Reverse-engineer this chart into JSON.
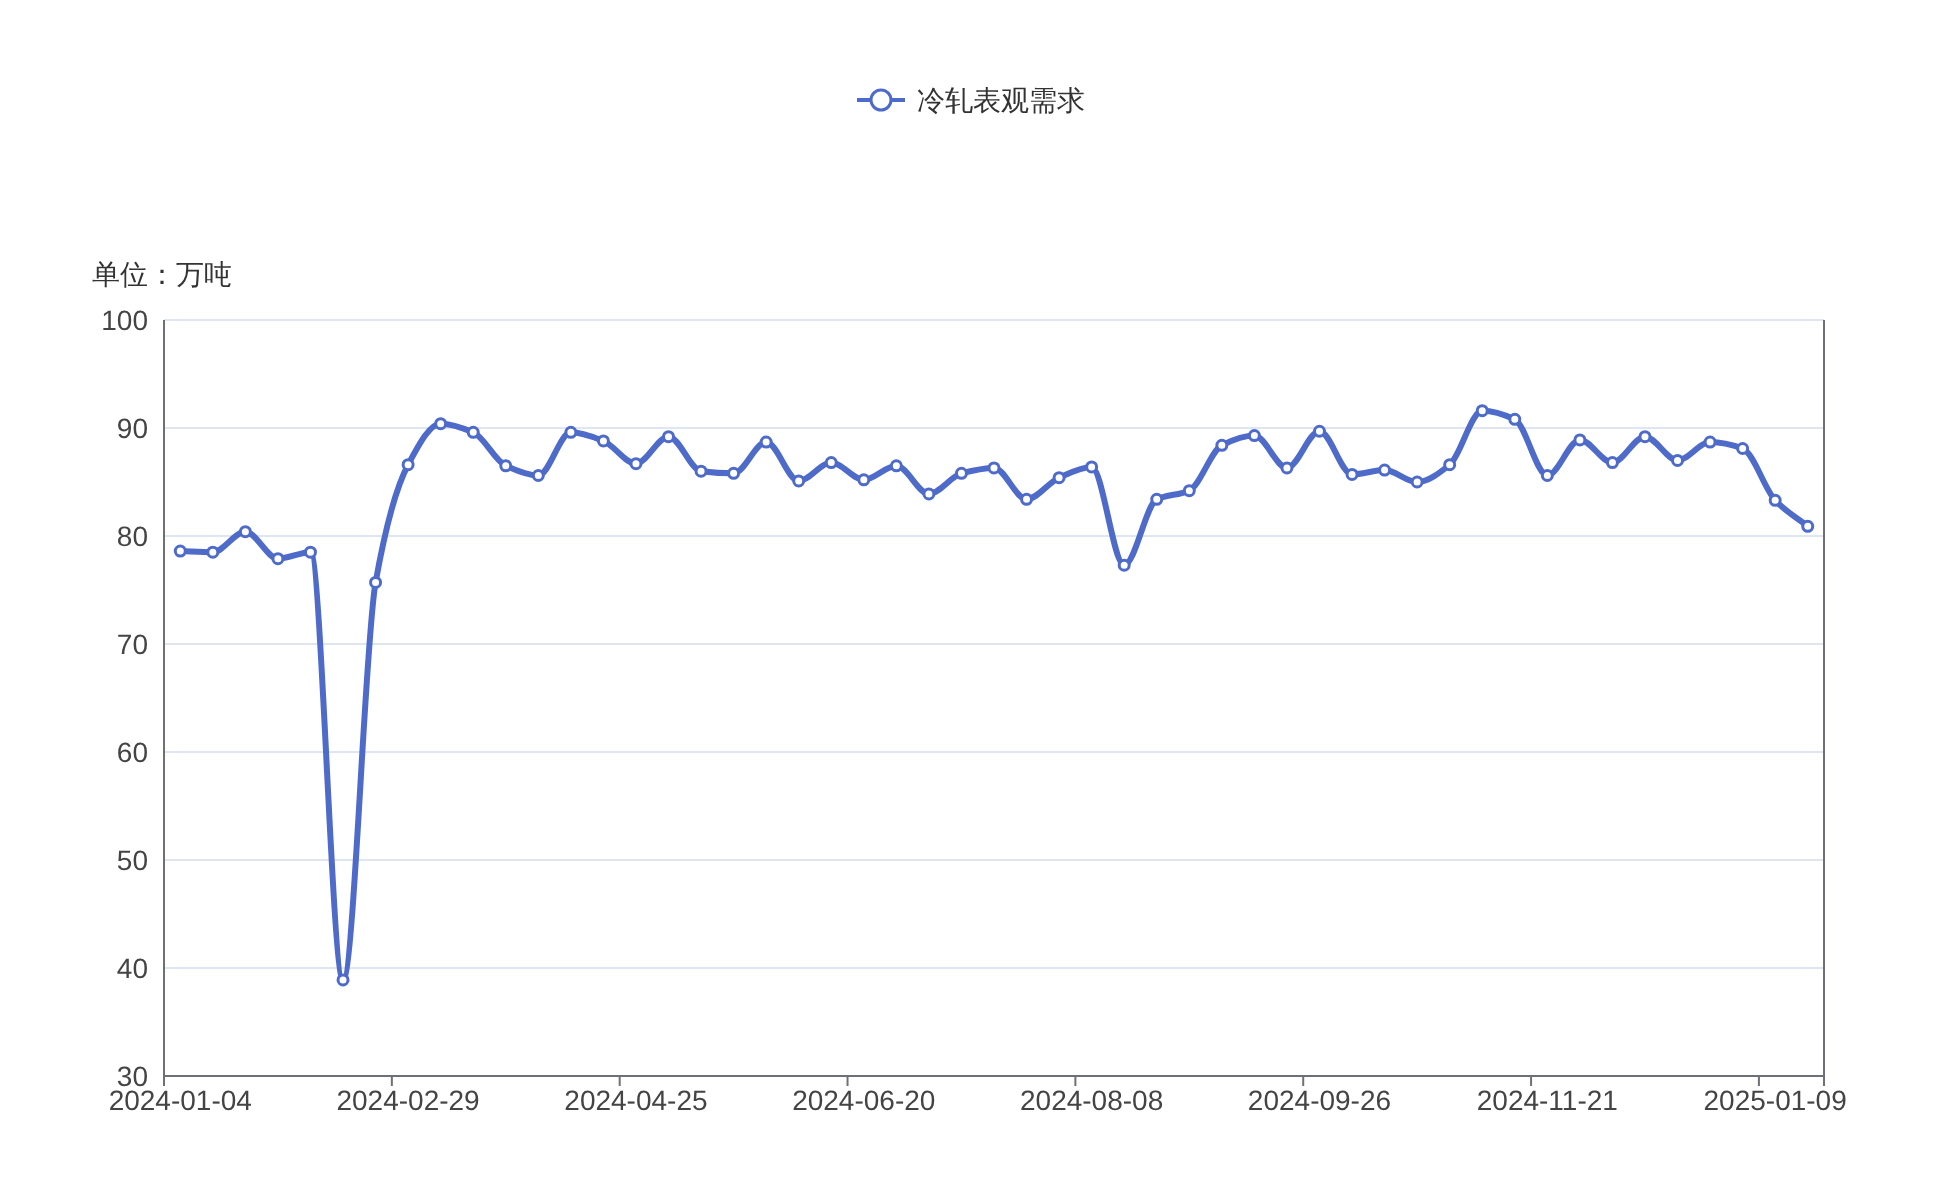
{
  "chart_data": {
    "type": "line",
    "ylabel": "单位：万吨",
    "categories": [
      "2024-01-04",
      null,
      null,
      null,
      null,
      null,
      null,
      "2024-02-29",
      null,
      null,
      null,
      null,
      null,
      null,
      "2024-04-25",
      null,
      null,
      null,
      null,
      null,
      null,
      "2024-06-20",
      null,
      null,
      null,
      null,
      null,
      null,
      "2024-08-08",
      null,
      null,
      null,
      null,
      null,
      null,
      "2024-09-26",
      null,
      null,
      null,
      null,
      null,
      null,
      "2024-11-21",
      null,
      null,
      null,
      null,
      null,
      null,
      "2025-01-09",
      null
    ],
    "series": [
      {
        "name": "冷轧表观需求",
        "color": "#4f6bc9",
        "values": [
          78.6,
          78.5,
          80.4,
          77.9,
          78.5,
          38.9,
          75.7,
          86.6,
          90.4,
          89.6,
          86.5,
          85.6,
          89.6,
          88.8,
          86.7,
          89.2,
          86.0,
          85.8,
          88.7,
          85.1,
          86.8,
          85.2,
          86.5,
          83.9,
          85.8,
          86.3,
          83.4,
          85.4,
          86.4,
          77.3,
          83.4,
          84.2,
          88.4,
          89.3,
          86.3,
          89.7,
          85.7,
          86.1,
          85.0,
          86.6,
          91.6,
          90.8,
          85.6,
          88.9,
          86.8,
          89.2,
          87.0,
          88.7,
          88.1,
          83.3,
          80.9
        ]
      }
    ],
    "ylim": [
      30,
      100
    ],
    "yticks": [
      30,
      40,
      50,
      60,
      70,
      80,
      90,
      100
    ],
    "grid": "y",
    "legend": "top",
    "marker": "circle",
    "line_style": "solid"
  }
}
